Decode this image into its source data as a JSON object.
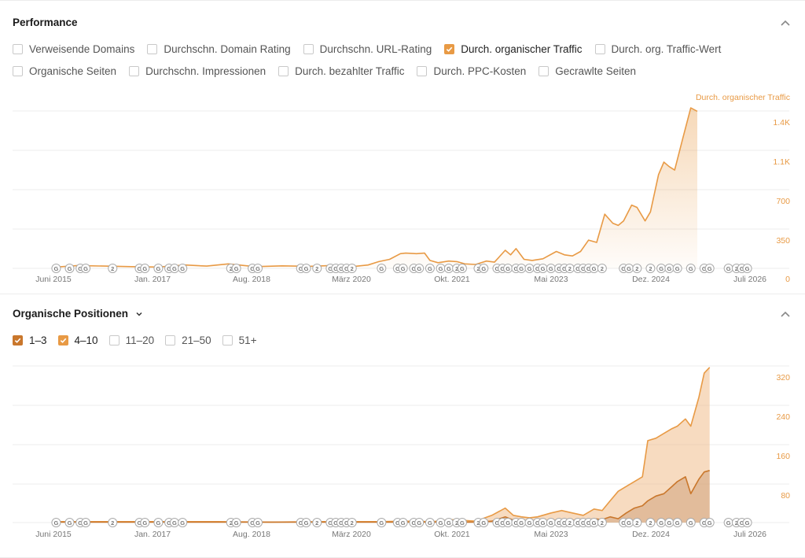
{
  "performance": {
    "title": "Performance",
    "checkbox_rows": [
      [
        {
          "label": "Verweisende Domains",
          "checked": false
        },
        {
          "label": "Durchschn. Domain Rating",
          "checked": false
        },
        {
          "label": "Durchschn. URL-Rating",
          "checked": false
        },
        {
          "label": "Durch. organischer Traffic",
          "checked": true
        },
        {
          "label": "Durch. org. Traffic-Wert",
          "checked": false
        }
      ],
      [
        {
          "label": "Organische Seiten",
          "checked": false
        },
        {
          "label": "Durchschn. Impressionen",
          "checked": false
        },
        {
          "label": "Durch. bezahlter Traffic",
          "checked": false
        },
        {
          "label": "Durch. PPC-Kosten",
          "checked": false
        },
        {
          "label": "Gecrawlte Seiten",
          "checked": false
        }
      ]
    ],
    "series_label": "Durch. organischer Traffic"
  },
  "positions": {
    "title": "Organische Positionen",
    "checkboxes": [
      {
        "label": "1–3",
        "checked": true,
        "color": "#c9772c"
      },
      {
        "label": "4–10",
        "checked": true,
        "color": "#e89a45"
      },
      {
        "label": "11–20",
        "checked": false
      },
      {
        "label": "21–50",
        "checked": false
      },
      {
        "label": "51+",
        "checked": false
      }
    ]
  },
  "colors": {
    "accent": "#e89a45",
    "accent_dark": "#c9772c",
    "grid": "#ececec",
    "axis_text": "#777777"
  },
  "icons": {
    "collapse": "chevron-up-icon",
    "dropdown": "chevron-down-icon",
    "marker_google": "G",
    "marker_two": "2"
  },
  "chart_data": [
    {
      "type": "area",
      "x_ticks": [
        "Juni 2015",
        "Jan. 2017",
        "Aug. 2018",
        "März 2020",
        "Okt. 2021",
        "Mai 2023",
        "Dez. 2024",
        "Juli 2026"
      ],
      "y_ticks": [
        "0",
        "350",
        "700",
        "1.1K",
        "1.4K"
      ],
      "ylim": [
        0,
        1400
      ],
      "grid": true,
      "series": [
        {
          "name": "Durch. organischer Traffic",
          "color": "#e89a45",
          "points": [
            [
              2015.45,
              10
            ],
            [
              2015.9,
              25
            ],
            [
              2016.4,
              20
            ],
            [
              2016.9,
              15
            ],
            [
              2017.4,
              12
            ],
            [
              2017.9,
              30
            ],
            [
              2018.3,
              20
            ],
            [
              2018.7,
              40
            ],
            [
              2019.2,
              15
            ],
            [
              2019.7,
              22
            ],
            [
              2020.2,
              18
            ],
            [
              2020.6,
              25
            ],
            [
              2021.0,
              15
            ],
            [
              2021.3,
              30
            ],
            [
              2021.5,
              60
            ],
            [
              2021.7,
              80
            ],
            [
              2021.9,
              130
            ],
            [
              2022.0,
              135
            ],
            [
              2022.2,
              130
            ],
            [
              2022.35,
              135
            ],
            [
              2022.45,
              70
            ],
            [
              2022.6,
              50
            ],
            [
              2022.8,
              65
            ],
            [
              2022.95,
              60
            ],
            [
              2023.1,
              40
            ],
            [
              2023.3,
              35
            ],
            [
              2023.5,
              65
            ],
            [
              2023.65,
              55
            ],
            [
              2023.85,
              160
            ],
            [
              2023.95,
              120
            ],
            [
              2024.05,
              175
            ],
            [
              2024.2,
              80
            ],
            [
              2024.35,
              70
            ],
            [
              2024.55,
              85
            ],
            [
              2024.8,
              150
            ],
            [
              2024.95,
              120
            ],
            [
              2025.1,
              110
            ],
            [
              2025.25,
              150
            ],
            [
              2025.4,
              250
            ],
            [
              2025.55,
              230
            ],
            [
              2025.7,
              480
            ],
            [
              2025.85,
              400
            ],
            [
              2025.95,
              380
            ],
            [
              2026.05,
              420
            ],
            [
              2026.2,
              560
            ],
            [
              2026.3,
              540
            ],
            [
              2026.45,
              420
            ],
            [
              2026.55,
              500
            ],
            [
              2026.7,
              830
            ],
            [
              2026.8,
              940
            ],
            [
              2026.9,
              900
            ],
            [
              2027.0,
              870
            ],
            [
              2027.15,
              1150
            ],
            [
              2027.3,
              1420
            ],
            [
              2027.42,
              1390
            ]
          ]
        }
      ],
      "markers": [
        {
          "x": 2015.5,
          "k": "G"
        },
        {
          "x": 2015.75,
          "k": "G"
        },
        {
          "x": 2015.95,
          "k": "G"
        },
        {
          "x": 2016.05,
          "k": "G"
        },
        {
          "x": 2016.55,
          "k": "2"
        },
        {
          "x": 2017.05,
          "k": "G"
        },
        {
          "x": 2017.15,
          "k": "G"
        },
        {
          "x": 2017.4,
          "k": "G"
        },
        {
          "x": 2017.6,
          "k": "G"
        },
        {
          "x": 2017.7,
          "k": "G"
        },
        {
          "x": 2017.85,
          "k": "G"
        },
        {
          "x": 2018.75,
          "k": "2"
        },
        {
          "x": 2018.85,
          "k": "G"
        },
        {
          "x": 2019.15,
          "k": "G"
        },
        {
          "x": 2019.25,
          "k": "G"
        },
        {
          "x": 2020.05,
          "k": "G"
        },
        {
          "x": 2020.15,
          "k": "G"
        },
        {
          "x": 2020.35,
          "k": "2"
        },
        {
          "x": 2020.6,
          "k": "G"
        },
        {
          "x": 2020.7,
          "k": "G"
        },
        {
          "x": 2020.8,
          "k": "G"
        },
        {
          "x": 2020.9,
          "k": "G"
        },
        {
          "x": 2021.0,
          "k": "2"
        },
        {
          "x": 2021.55,
          "k": "G"
        },
        {
          "x": 2021.85,
          "k": "G"
        },
        {
          "x": 2021.95,
          "k": "G"
        },
        {
          "x": 2022.15,
          "k": "G"
        },
        {
          "x": 2022.25,
          "k": "G"
        },
        {
          "x": 2022.45,
          "k": "G"
        },
        {
          "x": 2022.65,
          "k": "G"
        },
        {
          "x": 2022.8,
          "k": "G"
        },
        {
          "x": 2022.95,
          "k": "2"
        },
        {
          "x": 2023.05,
          "k": "G"
        },
        {
          "x": 2023.35,
          "k": "2"
        },
        {
          "x": 2023.45,
          "k": "G"
        },
        {
          "x": 2023.7,
          "k": "G"
        },
        {
          "x": 2023.8,
          "k": "G"
        },
        {
          "x": 2023.9,
          "k": "G"
        },
        {
          "x": 2024.05,
          "k": "G"
        },
        {
          "x": 2024.15,
          "k": "G"
        },
        {
          "x": 2024.3,
          "k": "G"
        },
        {
          "x": 2024.45,
          "k": "G"
        },
        {
          "x": 2024.55,
          "k": "G"
        },
        {
          "x": 2024.7,
          "k": "G"
        },
        {
          "x": 2024.85,
          "k": "G"
        },
        {
          "x": 2024.95,
          "k": "G"
        },
        {
          "x": 2025.05,
          "k": "2"
        },
        {
          "x": 2025.2,
          "k": "G"
        },
        {
          "x": 2025.3,
          "k": "G"
        },
        {
          "x": 2025.4,
          "k": "G"
        },
        {
          "x": 2025.5,
          "k": "G"
        },
        {
          "x": 2025.65,
          "k": "2"
        },
        {
          "x": 2026.05,
          "k": "G"
        },
        {
          "x": 2026.15,
          "k": "G"
        },
        {
          "x": 2026.3,
          "k": "2"
        },
        {
          "x": 2026.55,
          "k": "2"
        },
        {
          "x": 2026.75,
          "k": "G"
        },
        {
          "x": 2026.9,
          "k": "G"
        },
        {
          "x": 2027.05,
          "k": "G"
        },
        {
          "x": 2027.3,
          "k": "G"
        },
        {
          "x": 2027.55,
          "k": "G"
        },
        {
          "x": 2027.65,
          "k": "G"
        },
        {
          "x": 2028.0,
          "k": "G"
        },
        {
          "x": 2028.15,
          "k": "2"
        },
        {
          "x": 2028.25,
          "k": "G"
        },
        {
          "x": 2028.35,
          "k": "G"
        }
      ]
    },
    {
      "type": "area",
      "x_ticks": [
        "Juni 2015",
        "Jan. 2017",
        "Aug. 2018",
        "März 2020",
        "Okt. 2021",
        "Mai 2023",
        "Dez. 2024",
        "Juli 2026"
      ],
      "y_ticks": [
        "80",
        "160",
        "240",
        "320"
      ],
      "ylim": [
        0,
        320
      ],
      "grid": true,
      "series": [
        {
          "name": "4–10",
          "color": "#e89a45",
          "points": [
            [
              2015.45,
              2
            ],
            [
              2016.5,
              2
            ],
            [
              2017.5,
              2
            ],
            [
              2018.5,
              2
            ],
            [
              2019.5,
              1
            ],
            [
              2020.5,
              2
            ],
            [
              2021.5,
              2
            ],
            [
              2022.0,
              3
            ],
            [
              2022.5,
              2
            ],
            [
              2022.85,
              6
            ],
            [
              2023.0,
              5
            ],
            [
              2023.3,
              3
            ],
            [
              2023.6,
              15
            ],
            [
              2023.85,
              30
            ],
            [
              2024.0,
              15
            ],
            [
              2024.15,
              12
            ],
            [
              2024.3,
              10
            ],
            [
              2024.45,
              12
            ],
            [
              2024.7,
              20
            ],
            [
              2024.9,
              25
            ],
            [
              2025.1,
              20
            ],
            [
              2025.3,
              15
            ],
            [
              2025.5,
              28
            ],
            [
              2025.65,
              25
            ],
            [
              2025.8,
              45
            ],
            [
              2025.95,
              65
            ],
            [
              2026.1,
              75
            ],
            [
              2026.25,
              85
            ],
            [
              2026.4,
              95
            ],
            [
              2026.5,
              170
            ],
            [
              2026.65,
              175
            ],
            [
              2026.8,
              185
            ],
            [
              2026.95,
              195
            ],
            [
              2027.05,
              200
            ],
            [
              2027.2,
              215
            ],
            [
              2027.3,
              200
            ],
            [
              2027.45,
              260
            ],
            [
              2027.55,
              310
            ],
            [
              2027.65,
              322
            ]
          ]
        },
        {
          "name": "1–3",
          "color": "#c9772c",
          "points": [
            [
              2015.45,
              1
            ],
            [
              2016.5,
              1
            ],
            [
              2017.5,
              1
            ],
            [
              2018.5,
              1
            ],
            [
              2019.5,
              1
            ],
            [
              2020.5,
              1
            ],
            [
              2021.5,
              1
            ],
            [
              2022.0,
              1
            ],
            [
              2022.5,
              1
            ],
            [
              2023.0,
              1
            ],
            [
              2023.3,
              1
            ],
            [
              2023.6,
              3
            ],
            [
              2023.85,
              12
            ],
            [
              2024.0,
              5
            ],
            [
              2024.3,
              3
            ],
            [
              2024.7,
              4
            ],
            [
              2024.9,
              6
            ],
            [
              2025.1,
              5
            ],
            [
              2025.3,
              4
            ],
            [
              2025.5,
              8
            ],
            [
              2025.65,
              6
            ],
            [
              2025.8,
              12
            ],
            [
              2025.95,
              8
            ],
            [
              2026.1,
              20
            ],
            [
              2026.25,
              30
            ],
            [
              2026.4,
              35
            ],
            [
              2026.5,
              45
            ],
            [
              2026.65,
              55
            ],
            [
              2026.8,
              60
            ],
            [
              2026.95,
              75
            ],
            [
              2027.05,
              85
            ],
            [
              2027.2,
              95
            ],
            [
              2027.3,
              60
            ],
            [
              2027.45,
              90
            ],
            [
              2027.55,
              105
            ],
            [
              2027.65,
              108
            ]
          ]
        }
      ],
      "markers_same_as_first": true
    }
  ]
}
